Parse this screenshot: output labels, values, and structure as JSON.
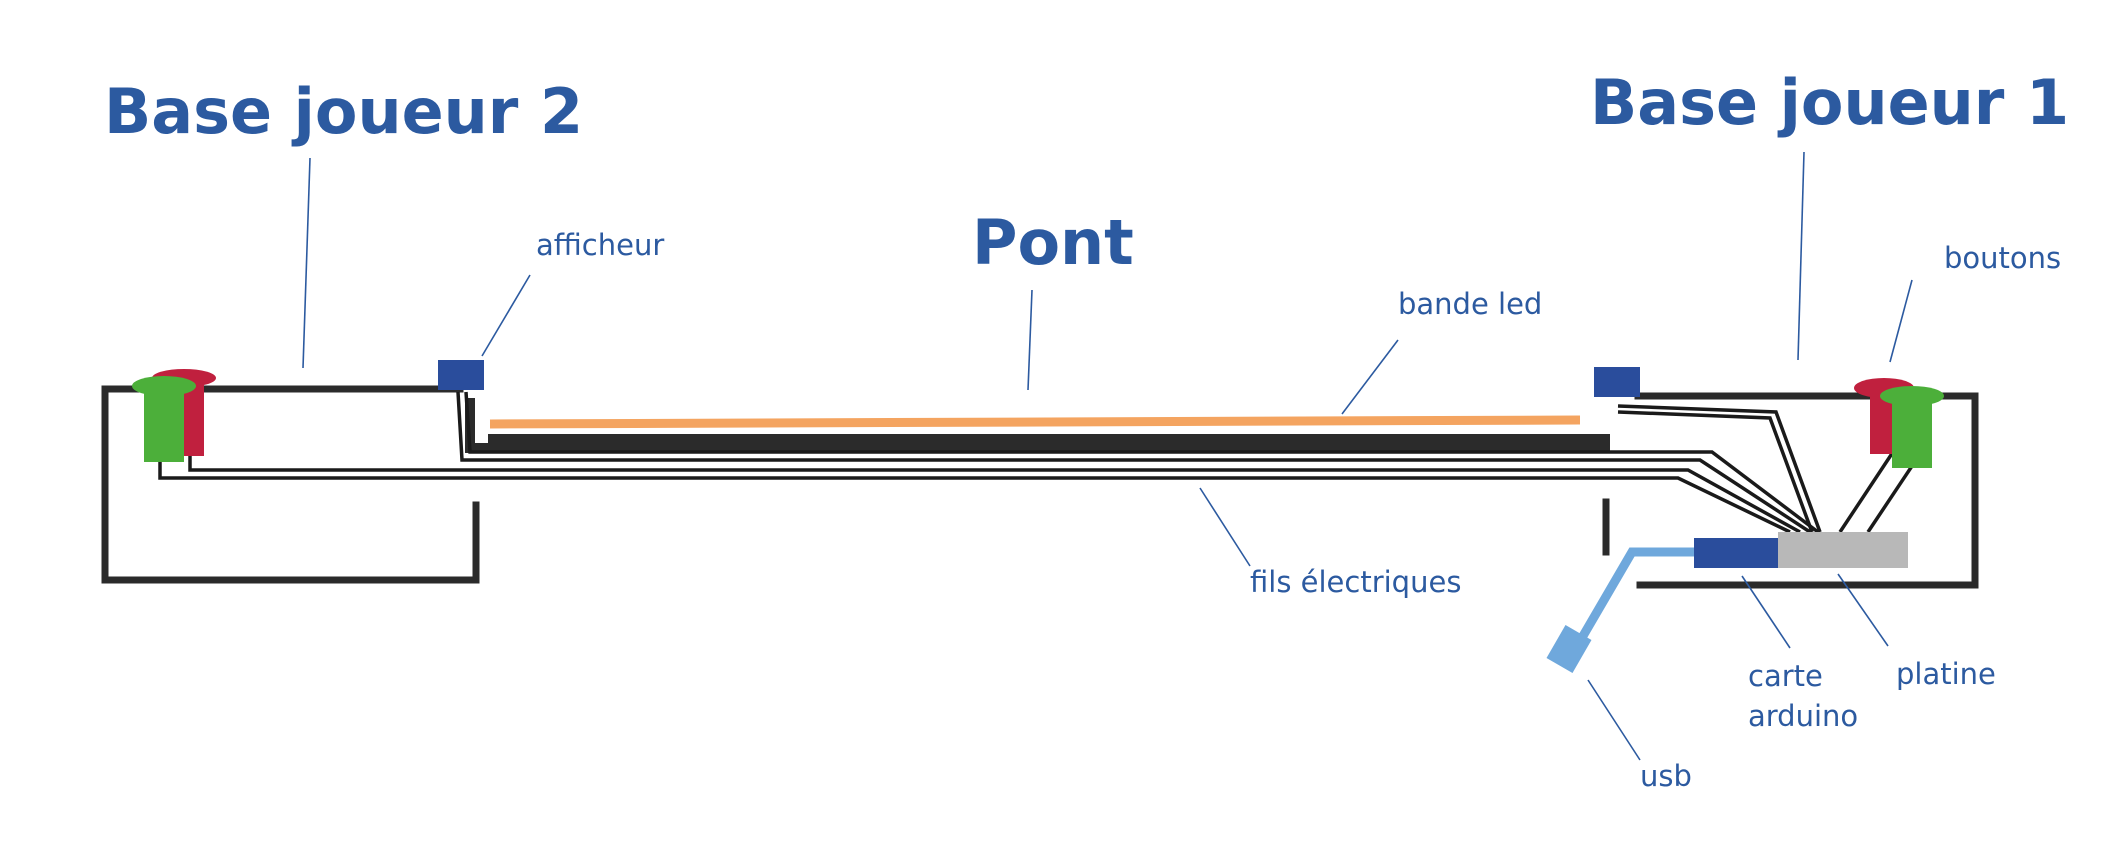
{
  "labels": {
    "base_joueur_2": "Base joueur 2",
    "base_joueur_1": "Base joueur 1",
    "pont": "Pont",
    "afficheur": "afficheur",
    "bande_led": "bande led",
    "boutons": "boutons",
    "fils_electriques": "fils électriques",
    "carte": "carte",
    "arduino": "arduino",
    "platine": "platine",
    "usb": "usb"
  },
  "colors": {
    "label_blue": "#2c5aa0",
    "frame_dark": "#2b2b2b",
    "led_strip_orange": "#f4a460",
    "button_green": "#4caf3a",
    "button_red": "#c0203e",
    "display_blue": "#2a4d9c",
    "arduino_blue": "#2a4d9c",
    "platine_gray": "#b8b8b8",
    "usb_cable_lightblue": "#6fa8dc"
  }
}
